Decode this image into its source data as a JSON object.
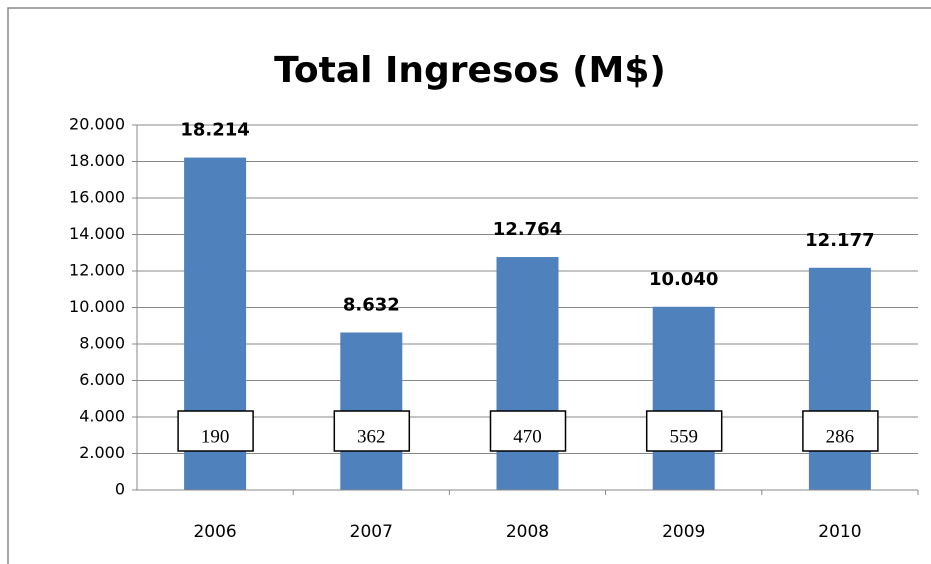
{
  "chart_data": {
    "type": "bar",
    "title": "Total Ingresos (M$)",
    "categories": [
      "2006",
      "2007",
      "2008",
      "2009",
      "2010"
    ],
    "values": [
      18214,
      8632,
      12764,
      10040,
      12177
    ],
    "value_labels": [
      "18.214",
      "8.632",
      "12.764",
      "10.040",
      "12.177"
    ],
    "annotations": [
      190,
      362,
      470,
      559,
      286
    ],
    "color": "#4f81bd",
    "ylim": [
      0,
      20000
    ],
    "yticks": [
      0,
      {
        "value": 2000,
        "label": "2.000"
      },
      {
        "value": 4000,
        "label": "4.000"
      },
      {
        "value": 6000,
        "label": "6.000"
      },
      {
        "value": 8000,
        "label": "8.000"
      },
      {
        "value": 10000,
        "label": "10.000"
      },
      {
        "value": 12000,
        "label": "12.000"
      },
      {
        "value": 14000,
        "label": "14.000"
      },
      {
        "value": 16000,
        "label": "16.000"
      },
      {
        "value": 18000,
        "label": "18.000"
      },
      {
        "value": 20000,
        "label": "20.000"
      }
    ],
    "grid": true
  }
}
